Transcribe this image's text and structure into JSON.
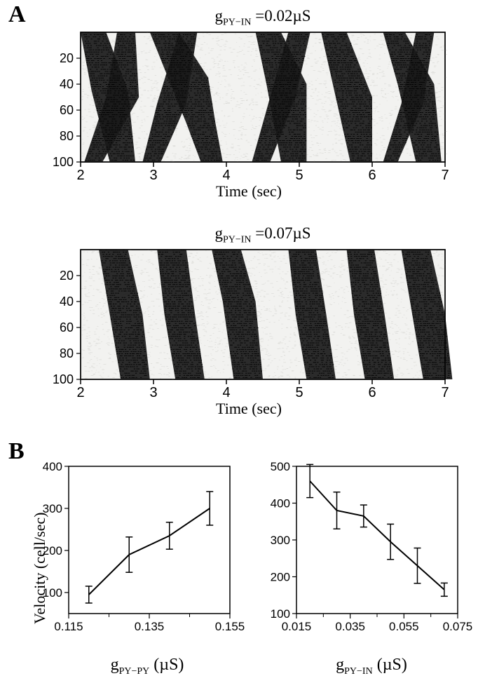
{
  "panelA": {
    "label": "A",
    "raster1": {
      "title_prefix": "g",
      "title_sub": "PY−IN",
      "title_suffix": " =0.02µS",
      "xlabel": "Time (sec)",
      "xlim": [
        2,
        7
      ],
      "xticks": [
        2,
        3,
        4,
        5,
        6,
        7
      ],
      "ylim": [
        0,
        100
      ],
      "yticks": [
        20,
        40,
        60,
        80,
        100
      ],
      "bg_color": "#f2f2f0",
      "speckle_color": "#d8d8d4",
      "stripe_color": "#1a1a1a"
    },
    "raster2": {
      "title_prefix": "g",
      "title_sub": "PY−IN",
      "title_suffix": " =0.07µS",
      "xlabel": "Time (sec)",
      "xlim": [
        2,
        7
      ],
      "xticks": [
        2,
        3,
        4,
        5,
        6,
        7
      ],
      "ylim": [
        0,
        100
      ],
      "yticks": [
        20,
        40,
        60,
        80,
        100
      ],
      "bg_color": "#f2f2f0",
      "speckle_color": "#d8d8d4",
      "stripe_color": "#1a1a1a"
    }
  },
  "panelB": {
    "label": "B",
    "chart1": {
      "ylabel": "Velocity (cell/sec)",
      "xlabel_prefix": "g",
      "xlabel_sub": "PY−PY",
      "xlabel_suffix": "  (µS)",
      "xlim": [
        0.115,
        0.155
      ],
      "xticks": [
        0.115,
        0.135,
        0.155
      ],
      "ylim": [
        50,
        400
      ],
      "yticks": [
        100,
        200,
        300,
        400
      ],
      "line_color": "#000000",
      "points": [
        {
          "x": 0.12,
          "y": 95,
          "err": 20
        },
        {
          "x": 0.13,
          "y": 190,
          "err": 42
        },
        {
          "x": 0.14,
          "y": 235,
          "err": 32
        },
        {
          "x": 0.15,
          "y": 300,
          "err": 40
        }
      ]
    },
    "chart2": {
      "xlabel_prefix": "g",
      "xlabel_sub": "PY−IN",
      "xlabel_suffix": "  (µS)",
      "xlim": [
        0.015,
        0.075
      ],
      "xticks": [
        0.015,
        0.035,
        0.055,
        0.075
      ],
      "ylim": [
        100,
        500
      ],
      "yticks": [
        100,
        200,
        300,
        400,
        500
      ],
      "line_color": "#000000",
      "points": [
        {
          "x": 0.02,
          "y": 460,
          "err": 45
        },
        {
          "x": 0.03,
          "y": 380,
          "err": 50
        },
        {
          "x": 0.04,
          "y": 365,
          "err": 30
        },
        {
          "x": 0.05,
          "y": 295,
          "err": 48
        },
        {
          "x": 0.06,
          "y": 230,
          "err": 48
        },
        {
          "x": 0.07,
          "y": 165,
          "err": 18
        }
      ]
    }
  }
}
